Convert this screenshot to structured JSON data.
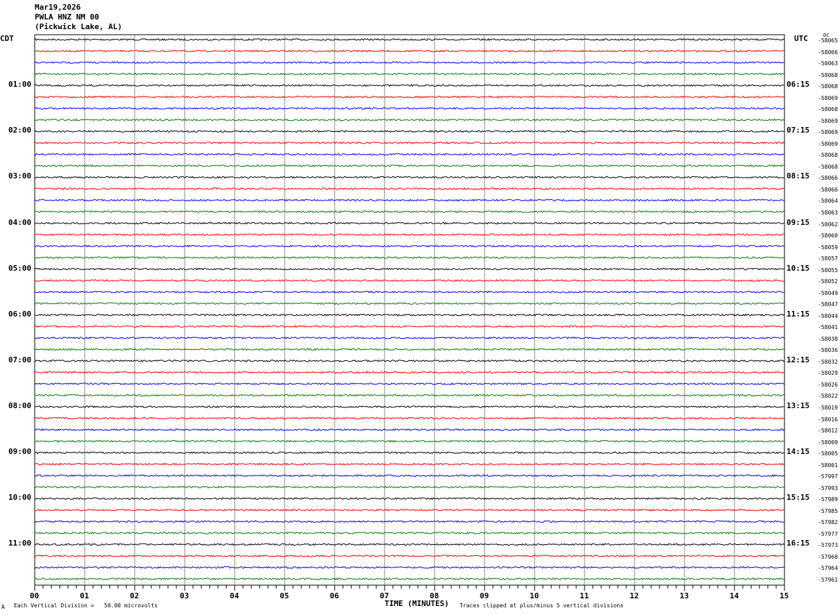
{
  "header": {
    "date": "Mar19,2026",
    "station": "PWLA HNZ NM 00",
    "location": "(Pickwick Lake, AL)"
  },
  "left_timezone": "CDT",
  "right_timezone": "UTC",
  "dc_label": "DC",
  "footer": {
    "corner_mark": "A",
    "scale_text": "Each Vertical Division =   50.00 microvolts",
    "xlabel": "TIME (MINUTES)",
    "clip_text": "Traces clipped at plus/minus 5 vertical divisions"
  },
  "chart_data": {
    "type": "line",
    "subtype": "helicorder",
    "xlabel": "TIME (MINUTES)",
    "xlim": [
      0,
      15
    ],
    "x_ticks": [
      "00",
      "01",
      "02",
      "03",
      "04",
      "05",
      "06",
      "07",
      "08",
      "09",
      "10",
      "11",
      "12",
      "13",
      "14",
      "15"
    ],
    "grid": "vertical lines each minute",
    "trace_colors": [
      "#000000",
      "#ff0000",
      "#0000ff",
      "#007a00"
    ],
    "left_hour_labels": [
      "CDT",
      "01:00",
      "02:00",
      "03:00",
      "04:00",
      "05:00",
      "06:00",
      "07:00",
      "08:00",
      "09:00",
      "10:00",
      "11:00"
    ],
    "right_hour_labels": [
      "UTC",
      "06:15",
      "07:15",
      "08:15",
      "09:15",
      "10:15",
      "11:15",
      "12:15",
      "13:15",
      "14:15",
      "15:15",
      "16:15"
    ],
    "rows_per_hour": 4,
    "row_offsets": [
      -58065,
      -58066,
      -58063,
      -58068,
      -58068,
      -58069,
      -58068,
      -58069,
      -58069,
      -58069,
      -58068,
      -58068,
      -58066,
      -58066,
      -58064,
      -58063,
      -58062,
      -58060,
      -58059,
      -58057,
      -58055,
      -58052,
      -58049,
      -58047,
      -58044,
      -58041,
      -58038,
      -58036,
      -58032,
      -58029,
      -58026,
      -58022,
      -58019,
      -58016,
      -58012,
      -58009,
      -58005,
      -58001,
      -57997,
      -57993,
      -57989,
      -57985,
      -57982,
      -57977,
      -57973,
      -57968,
      -57964,
      -57961
    ]
  }
}
